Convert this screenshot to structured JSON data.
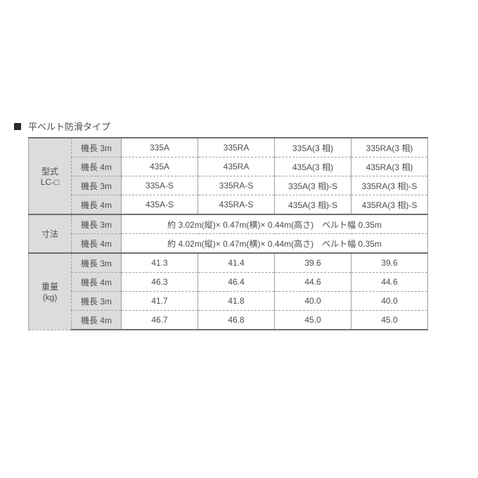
{
  "title": "平ベルト防滑タイプ",
  "row_header1": {
    "model": "型式\nLC-□",
    "dim": "寸法",
    "weight": "重量\n(kg)"
  },
  "len3": "機長 3m",
  "len4": "機長 4m",
  "model": {
    "r0": [
      "335A",
      "335RA",
      "335A(3 相)",
      "335RA(3 相)"
    ],
    "r1": [
      "435A",
      "435RA",
      "435A(3 相)",
      "435RA(3 相)"
    ],
    "r2": [
      "335A-S",
      "335RA-S",
      "335A(3 相)-S",
      "335RA(3 相)-S"
    ],
    "r3": [
      "435A-S",
      "435RA-S",
      "435A(3 相)-S",
      "435RA(3 相)-S"
    ]
  },
  "dim": {
    "r0": "約 3.02m(縦)× 0.47m(横)× 0.44m(高さ)　ベルト幅 0.35m",
    "r1": "約 4.02m(縦)× 0.47m(横)× 0.44m(高さ)　ベルト幅 0.35m"
  },
  "weight": {
    "r0": [
      "41.3",
      "41.4",
      "39.6",
      "39.6"
    ],
    "r1": [
      "46.3",
      "46.4",
      "44.6",
      "44.6"
    ],
    "r2": [
      "41.7",
      "41.8",
      "40.0",
      "40.0"
    ],
    "r3": [
      "46.7",
      "46.8",
      "45.0",
      "45.0"
    ]
  }
}
